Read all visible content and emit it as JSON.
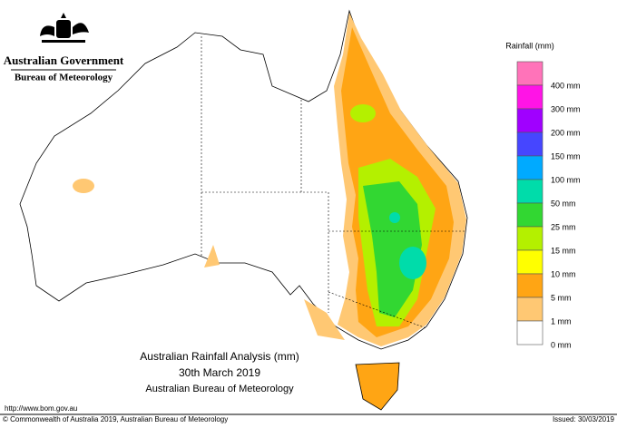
{
  "header": {
    "agency": "Australian Government",
    "bureau": "Bureau of Meteorology"
  },
  "title": {
    "line1": "Australian Rainfall Analysis (mm)",
    "line2": "30th March 2019",
    "line3": "Australian Bureau of Meteorology"
  },
  "legend": {
    "title": "Rainfall (mm)",
    "items": [
      {
        "label": "400 mm",
        "color": "#ff73b9"
      },
      {
        "label": "300 mm",
        "color": "#ff14e6"
      },
      {
        "label": "200 mm",
        "color": "#a000ff"
      },
      {
        "label": "150 mm",
        "color": "#4646ff"
      },
      {
        "label": "100 mm",
        "color": "#00aaff"
      },
      {
        "label": "50 mm",
        "color": "#00dcaa"
      },
      {
        "label": "25 mm",
        "color": "#32d732"
      },
      {
        "label": "15 mm",
        "color": "#b4f000"
      },
      {
        "label": "10 mm",
        "color": "#ffff00"
      },
      {
        "label": "5 mm",
        "color": "#ffa514"
      },
      {
        "label": "1 mm",
        "color": "#ffc873"
      },
      {
        "label": "0 mm",
        "color": "#ffffff"
      }
    ]
  },
  "footer": {
    "url": "http://www.bom.gov.au",
    "copyright": "© Commonwealth of Australia 2019, Australian Bureau of Meteorology",
    "issued": "Issued: 30/03/2019"
  }
}
